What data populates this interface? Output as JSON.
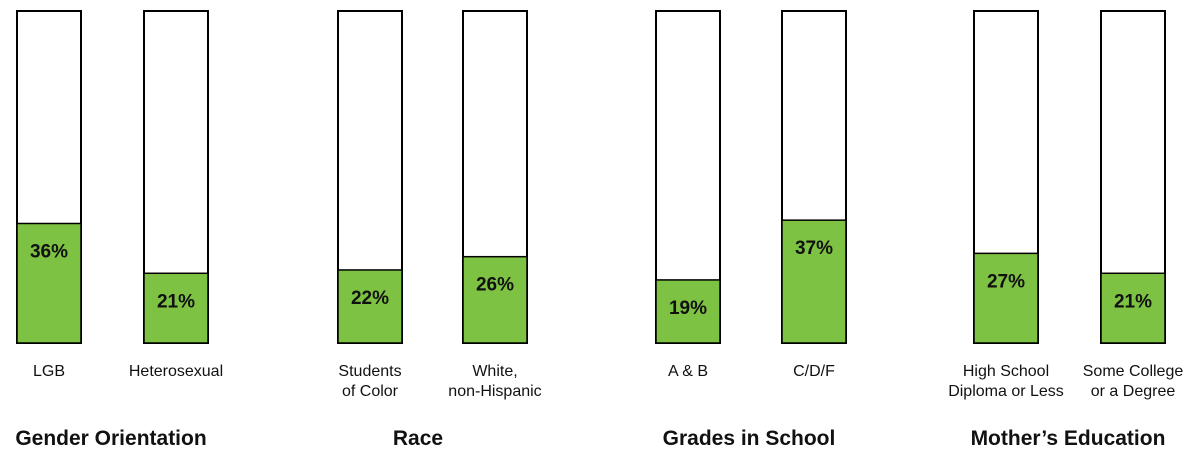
{
  "chart_data": {
    "type": "bar",
    "ylim": [
      0,
      100
    ],
    "bar_color": "#7dc242",
    "groups": [
      {
        "title": "Gender Orientation",
        "bars": [
          {
            "label": [
              "LGB"
            ],
            "value": 36,
            "value_label": "36%"
          },
          {
            "label": [
              "Heterosexual"
            ],
            "value": 21,
            "value_label": "21%"
          }
        ]
      },
      {
        "title": "Race",
        "bars": [
          {
            "label": [
              "Students",
              "of Color"
            ],
            "value": 22,
            "value_label": "22%"
          },
          {
            "label": [
              "White,",
              "non-Hispanic"
            ],
            "value": 26,
            "value_label": "26%"
          }
        ]
      },
      {
        "title": "Grades in School",
        "bars": [
          {
            "label": [
              "A & B"
            ],
            "value": 19,
            "value_label": "19%"
          },
          {
            "label": [
              "C/D/F"
            ],
            "value": 37,
            "value_label": "37%"
          }
        ]
      },
      {
        "title": "Mother’s Education",
        "bars": [
          {
            "label": [
              "High School",
              "Diploma or Less"
            ],
            "value": 27,
            "value_label": "27%"
          },
          {
            "label": [
              "Some College",
              "or a Degree"
            ],
            "value": 21,
            "value_label": "21%"
          }
        ]
      }
    ]
  }
}
